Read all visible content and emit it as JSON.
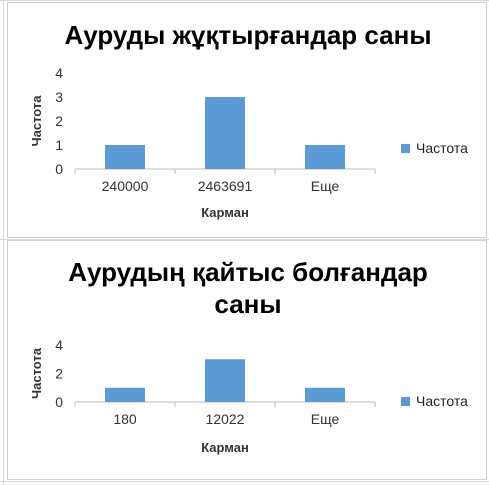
{
  "chart_data": [
    {
      "type": "bar",
      "title": "Ауруды жұқтырғандар саны",
      "categories": [
        "240000",
        "2463691",
        "Еще"
      ],
      "series": [
        {
          "name": "Частота",
          "values": [
            1,
            3,
            1
          ]
        }
      ],
      "xlabel": "Карман",
      "ylabel": "Частота",
      "ylim": [
        0,
        4
      ],
      "yticks": [
        "0",
        "1",
        "2",
        "3",
        "4"
      ],
      "legend": "right",
      "color": "#5b9bd5"
    },
    {
      "type": "bar",
      "title": "Аурудың қайтыс болғандар саны",
      "categories": [
        "180",
        "12022",
        "Еще"
      ],
      "series": [
        {
          "name": "Частота",
          "values": [
            1,
            3,
            1
          ]
        }
      ],
      "xlabel": "Карман",
      "ylabel": "Частота",
      "ylim": [
        0,
        4
      ],
      "yticks": [
        "0",
        "2",
        "4"
      ],
      "legend": "right",
      "color": "#5b9bd5"
    }
  ]
}
